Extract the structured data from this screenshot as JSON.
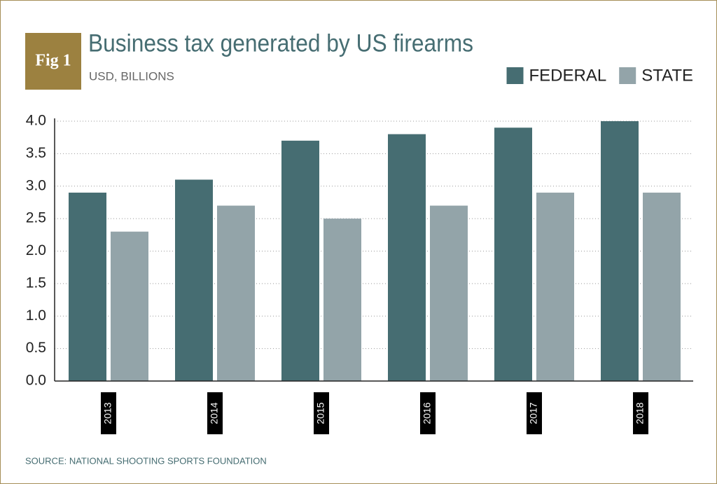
{
  "chart_data": {
    "type": "bar",
    "badge": "Fig 1",
    "title": "Business tax generated by US firearms",
    "subtitle": "USD, BILLIONS",
    "source": "SOURCE: NATIONAL SHOOTING SPORTS FOUNDATION",
    "categories": [
      "2013",
      "2014",
      "2015",
      "2016",
      "2017",
      "2018"
    ],
    "series": [
      {
        "name": "FEDERAL",
        "color": "#466d72",
        "values": [
          2.9,
          3.1,
          3.7,
          3.8,
          3.9,
          4.0
        ]
      },
      {
        "name": "STATE",
        "color": "#93a4a9",
        "values": [
          2.3,
          2.7,
          2.5,
          2.7,
          2.9,
          2.9
        ]
      }
    ],
    "ylim": [
      0,
      4
    ],
    "yticks": [
      {
        "value": 0,
        "label": "0.0"
      },
      0.5,
      {
        "value": 1,
        "label": "1.0"
      },
      1.5,
      {
        "value": 2,
        "label": "2.0"
      },
      2.5,
      {
        "value": 3,
        "label": "3.0"
      },
      3.5,
      {
        "value": 4,
        "label": "4.0"
      }
    ],
    "grid": true,
    "legend": "top-right"
  }
}
